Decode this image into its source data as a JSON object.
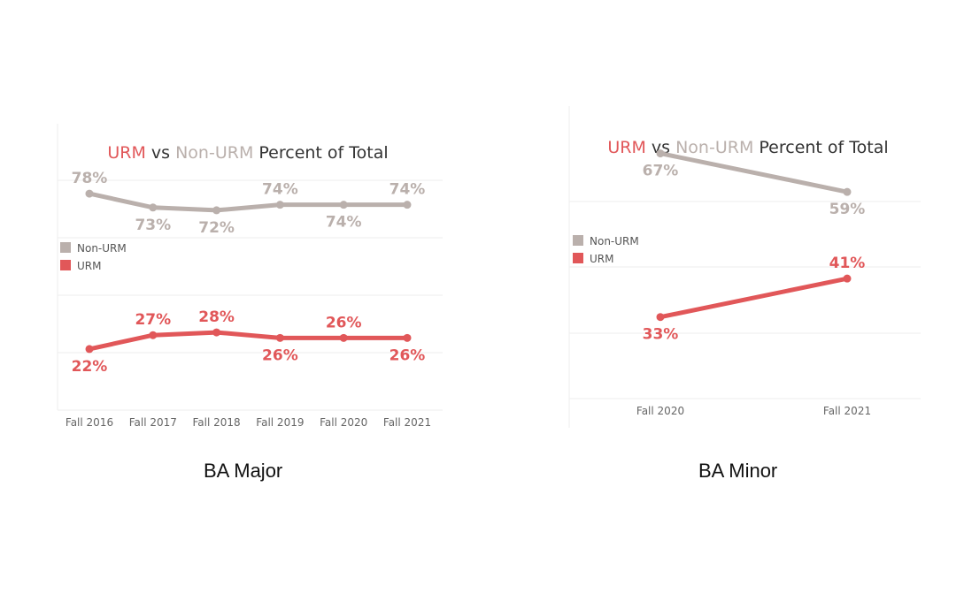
{
  "colors": {
    "urm": "#e15759",
    "non_urm": "#bab0ac",
    "title_text": "#333333",
    "axis_text": "#666666",
    "grid": "#eeeeee"
  },
  "chart_data": [
    {
      "type": "line",
      "title_parts": {
        "urm": "URM",
        "vs": " vs ",
        "non_urm": "Non-URM",
        "rest": " Percent of Total"
      },
      "caption": "BA Major",
      "categories": [
        "Fall 2016",
        "Fall 2017",
        "Fall 2018",
        "Fall 2019",
        "Fall 2020",
        "Fall 2021"
      ],
      "ylim": [
        0,
        100
      ],
      "legend": {
        "position": "left",
        "items": [
          "Non-URM",
          "URM"
        ]
      },
      "series": [
        {
          "name": "Non-URM",
          "values": [
            78,
            73,
            72,
            74,
            74,
            74
          ],
          "labels": [
            "78%",
            "73%",
            "72%",
            "74%",
            "74%",
            "74%"
          ],
          "label_side": [
            "above",
            "below",
            "below",
            "above",
            "below",
            "above"
          ]
        },
        {
          "name": "URM",
          "values": [
            22,
            27,
            28,
            26,
            26,
            26
          ],
          "labels": [
            "22%",
            "27%",
            "28%",
            "26%",
            "26%",
            "26%"
          ],
          "label_side": [
            "below",
            "above",
            "above",
            "below",
            "above",
            "below"
          ]
        }
      ]
    },
    {
      "type": "line",
      "title_parts": {
        "urm": "URM",
        "vs": " vs ",
        "non_urm": "Non-URM",
        "rest": " Percent of Total"
      },
      "caption": "BA Minor",
      "categories": [
        "Fall 2020",
        "Fall 2021"
      ],
      "ylim": [
        10,
        75
      ],
      "legend": {
        "position": "left",
        "items": [
          "Non-URM",
          "URM"
        ]
      },
      "series": [
        {
          "name": "Non-URM",
          "values": [
            67,
            59
          ],
          "labels": [
            "67%",
            "59%"
          ],
          "label_side": [
            "below",
            "below"
          ]
        },
        {
          "name": "URM",
          "values": [
            33,
            41
          ],
          "labels": [
            "33%",
            "41%"
          ],
          "label_side": [
            "below",
            "above"
          ]
        }
      ]
    }
  ]
}
